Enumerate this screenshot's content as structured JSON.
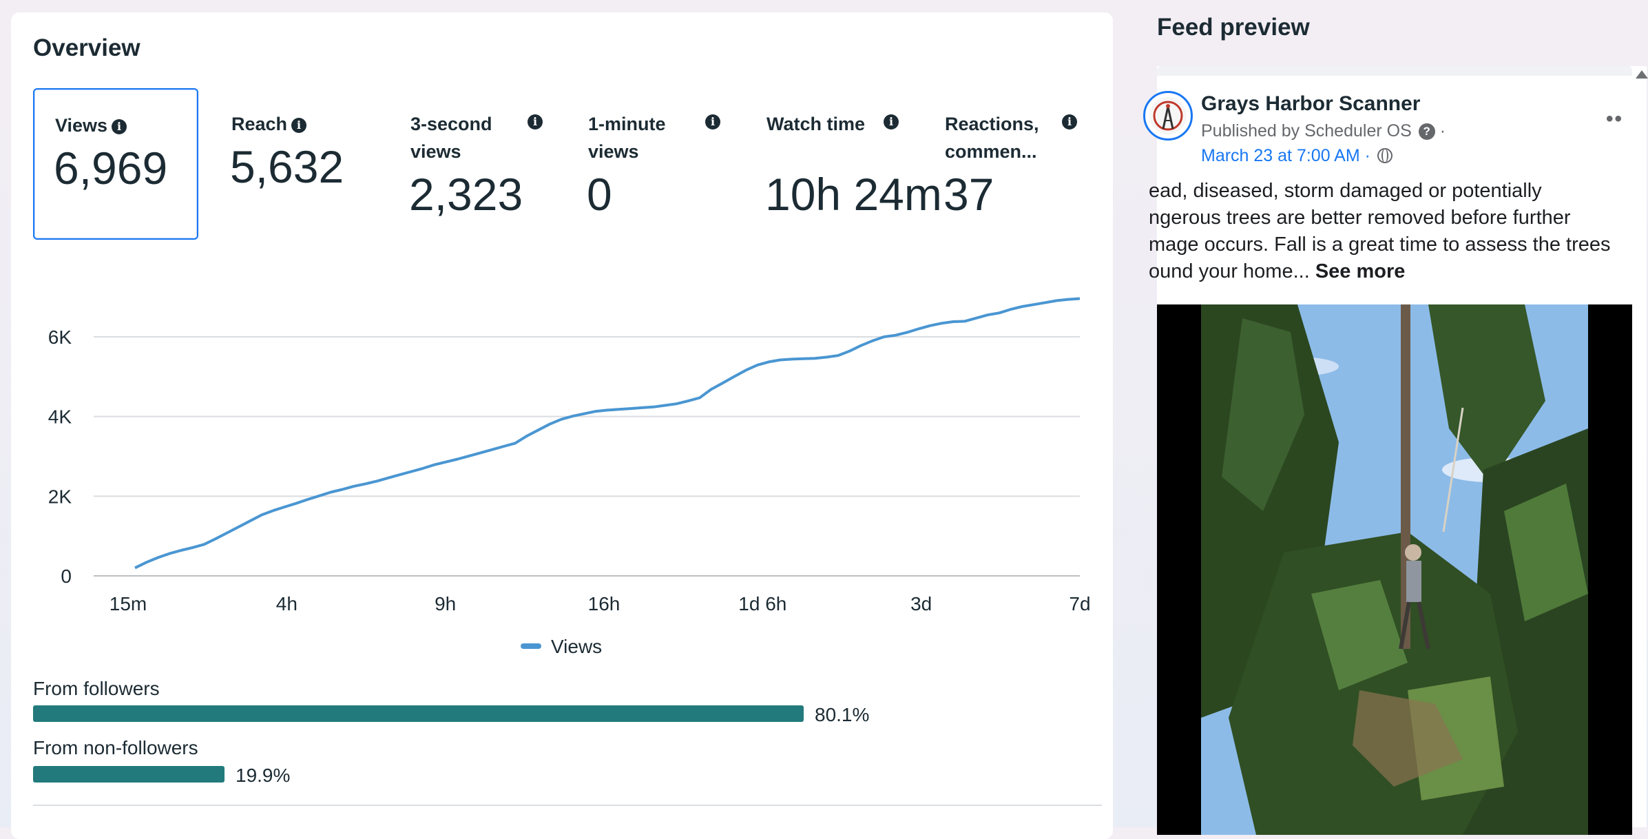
{
  "overview": {
    "title": "Overview",
    "metrics": [
      {
        "label": "Views",
        "value": "6,969",
        "selected": true
      },
      {
        "label": "Reach",
        "value": "5,632"
      },
      {
        "label": "3-second views",
        "value": "2,323"
      },
      {
        "label": "1-minute views",
        "value": "0"
      },
      {
        "label": "Watch time",
        "value": "10h 24m"
      },
      {
        "label": "Reactions, commen...",
        "value": "37"
      }
    ],
    "legend": "Views",
    "audience": [
      {
        "label": "From followers",
        "pct_text": "80.1%",
        "pct": 80.1
      },
      {
        "label": "From non-followers",
        "pct_text": "19.9%",
        "pct": 19.9
      }
    ]
  },
  "chart_data": {
    "type": "line",
    "x_ticks": [
      "15m",
      "4h",
      "9h",
      "16h",
      "1d 6h",
      "3d",
      "7d"
    ],
    "y_ticks": [
      "0",
      "2K",
      "4K",
      "6K"
    ],
    "ylim": [
      0,
      7200
    ],
    "series": [
      {
        "name": "Views",
        "color": "#4a96d2",
        "values": [
          200,
          340,
          460,
          560,
          640,
          710,
          790,
          930,
          1080,
          1230,
          1380,
          1530,
          1640,
          1730,
          1820,
          1920,
          2010,
          2100,
          2170,
          2250,
          2310,
          2380,
          2460,
          2540,
          2620,
          2700,
          2790,
          2860,
          2930,
          3010,
          3090,
          3170,
          3250,
          3330,
          3510,
          3660,
          3810,
          3930,
          4010,
          4070,
          4130,
          4160,
          4180,
          4200,
          4220,
          4240,
          4280,
          4320,
          4390,
          4470,
          4680,
          4840,
          5000,
          5160,
          5290,
          5370,
          5420,
          5440,
          5450,
          5460,
          5490,
          5530,
          5640,
          5780,
          5900,
          6000,
          6040,
          6110,
          6200,
          6280,
          6340,
          6380,
          6390,
          6470,
          6550,
          6600,
          6690,
          6760,
          6810,
          6860,
          6910,
          6940,
          6960
        ]
      }
    ]
  },
  "feed": {
    "title": "Feed preview",
    "page_name": "Grays Harbor Scanner",
    "published_by": "Published by Scheduler OS",
    "separator": "·",
    "date": "March 23 at 7:00 AM ·",
    "text_lines": [
      "ead, diseased, storm damaged or potentially",
      "ngerous trees are better removed before further",
      "mage occurs.  Fall is a great time to assess the trees"
    ],
    "text_last": "ound your home...",
    "see_more": "See more"
  }
}
